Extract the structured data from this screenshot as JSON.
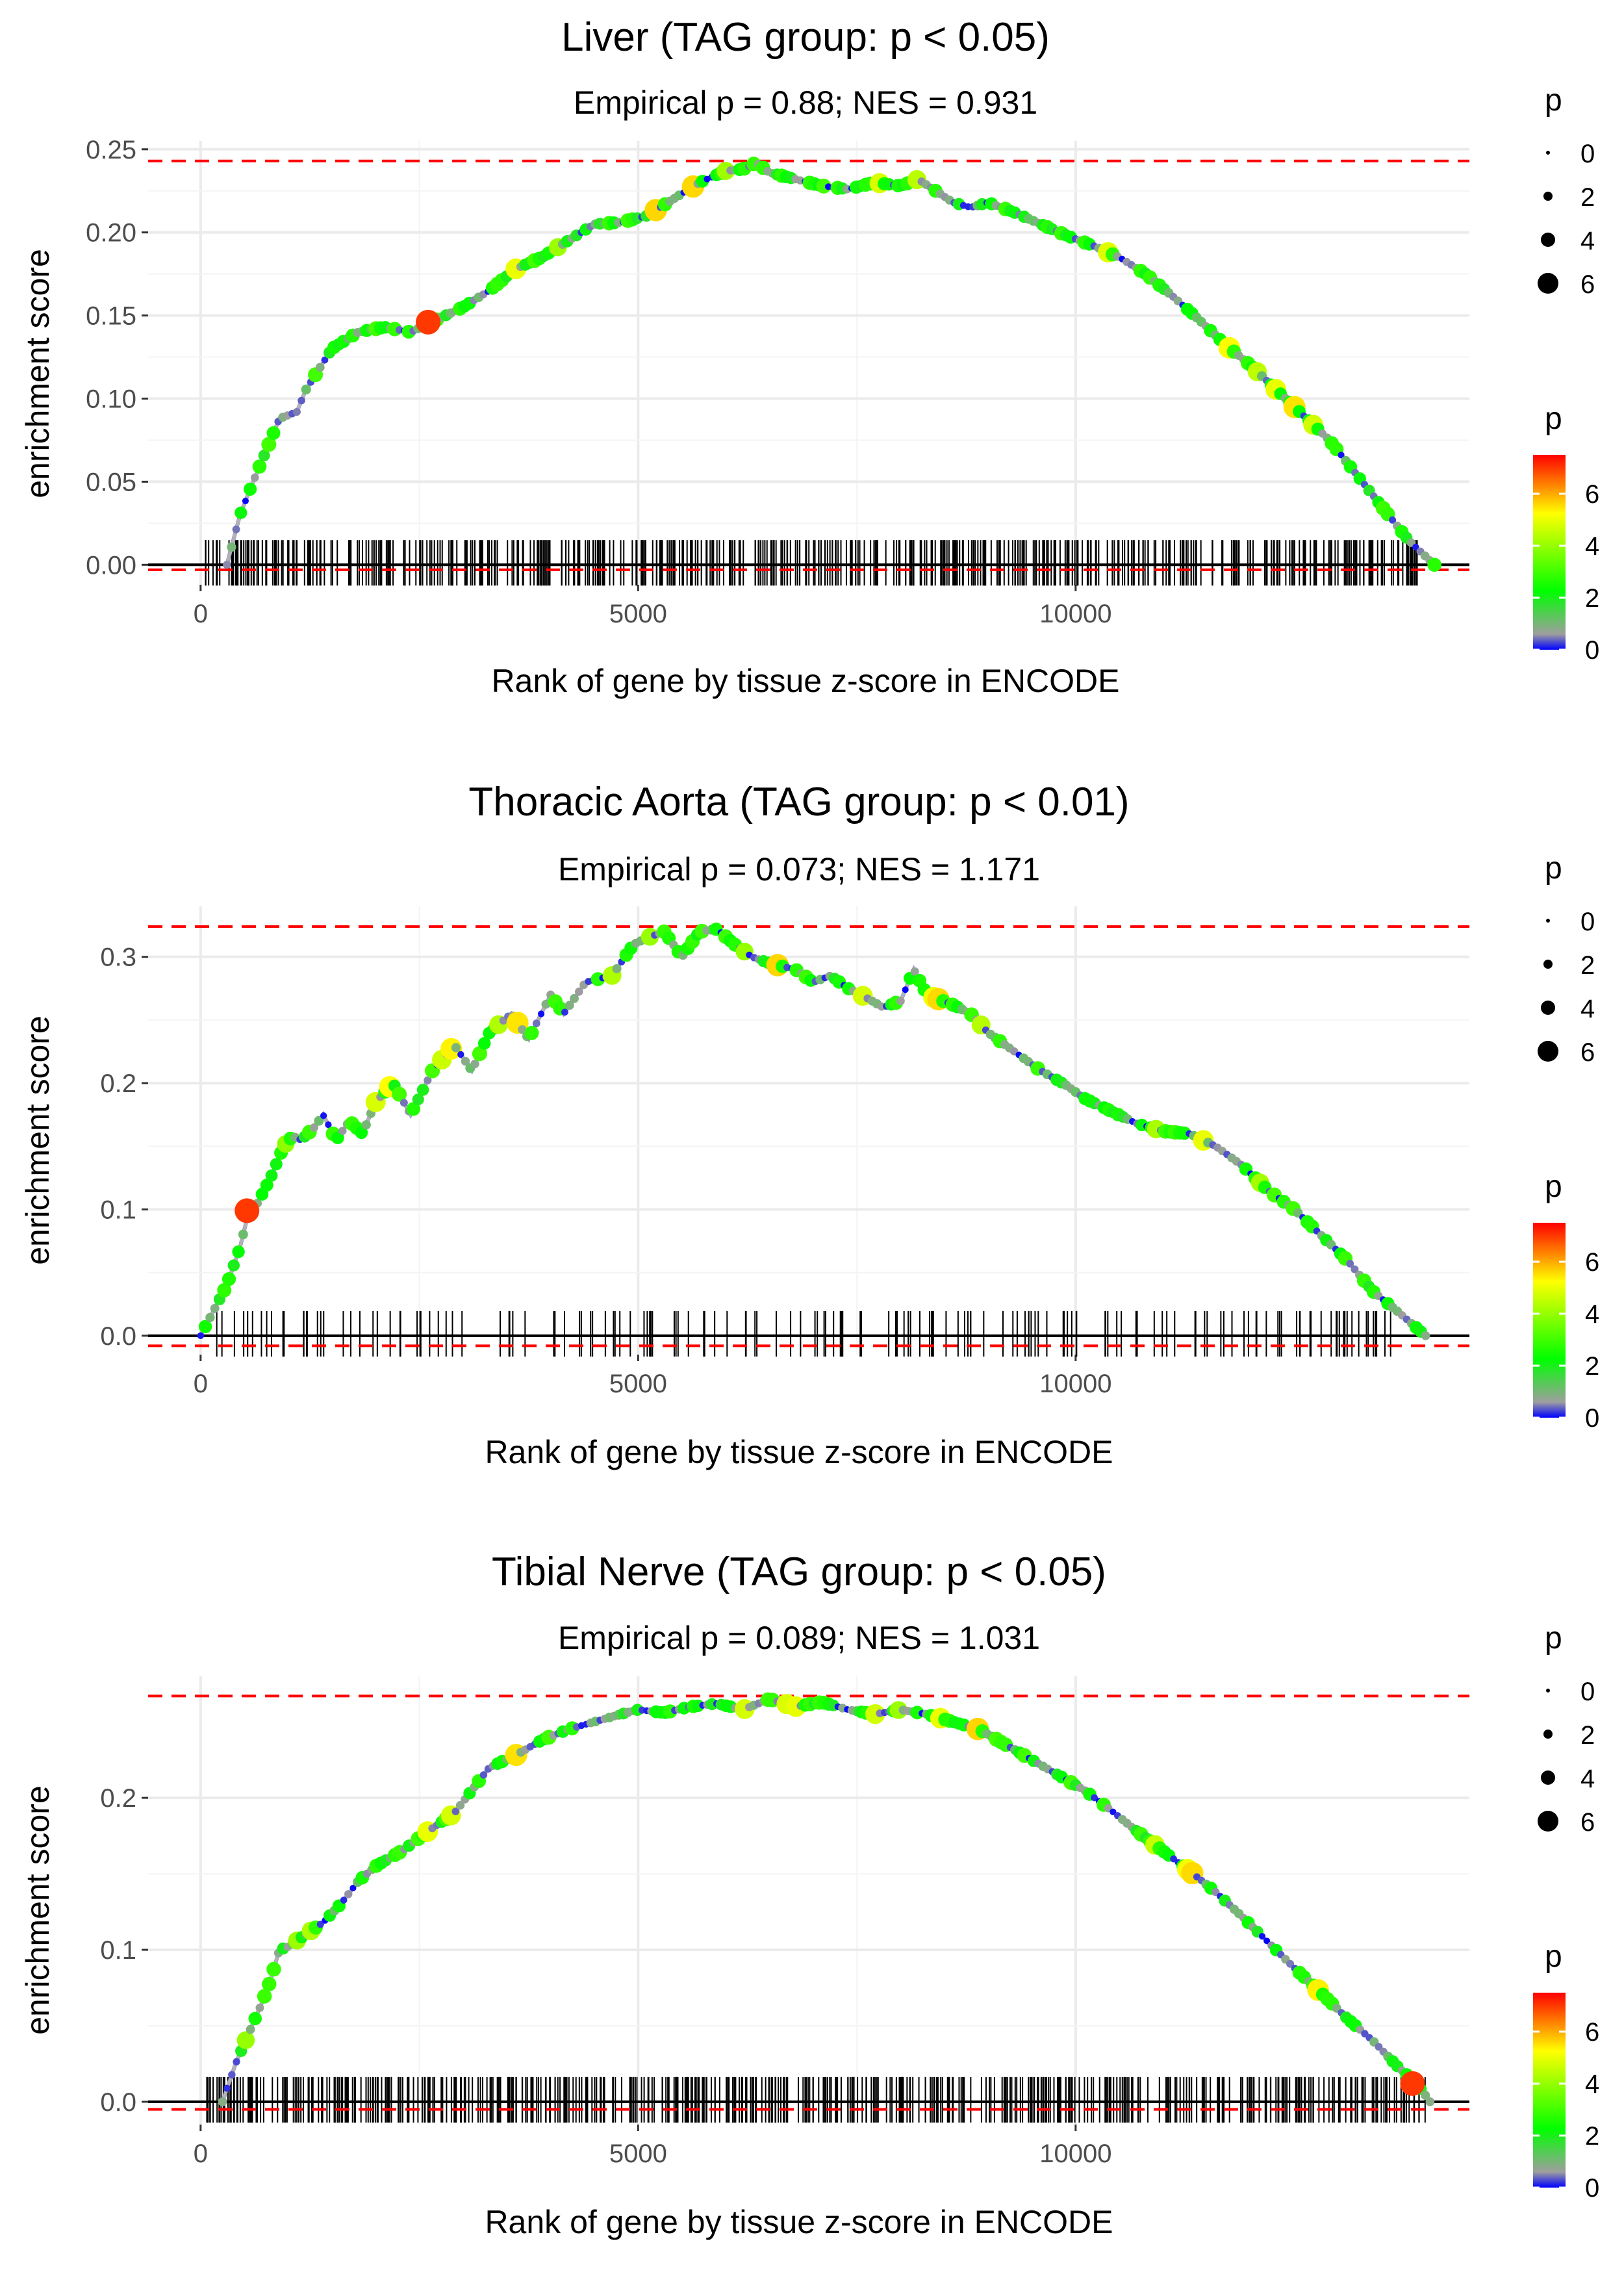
{
  "figure": {
    "description_free": true
  },
  "colors": {
    "reference_line": "#ff0000",
    "zero_line": "#000000",
    "grid": "#ebebeb",
    "curve_line": "#b3b3b3",
    "tick_mark": "#000000",
    "gradient": [
      "#0000ff",
      "#9e9e9e",
      "#00ff00",
      "#ffff00",
      "#ff0000"
    ]
  },
  "chart_data": [
    {
      "type": "line",
      "title": "Liver (TAG group: p < 0.05)",
      "subtitle": "Empirical p = 0.88; NES = 0.931",
      "xlabel": "Rank of gene by tissue z-score in ENCODE",
      "ylabel": "enrichment score",
      "xlim": [
        -600,
        14500
      ],
      "ylim": [
        -0.012,
        0.255
      ],
      "xticks": [
        0,
        5000,
        10000
      ],
      "xtick_labels": [
        "0",
        "5000",
        "10000"
      ],
      "yticks": [
        0.0,
        0.05,
        0.1,
        0.15,
        0.2,
        0.25
      ],
      "ytick_labels": [
        "0.00",
        "0.05",
        "0.10",
        "0.15",
        "0.20",
        "0.25"
      ],
      "hlines": {
        "max": 0.243,
        "min": -0.003
      },
      "series": [
        {
          "name": "running enrichment score",
          "x": [
            300,
            450,
            600,
            800,
            900,
            1000,
            1100,
            1200,
            1500,
            1800,
            2100,
            2400,
            2600,
            2800,
            3000,
            3300,
            3600,
            3900,
            4200,
            4500,
            4800,
            5100,
            5400,
            5700,
            6000,
            6200,
            6350,
            6500,
            6800,
            7100,
            7400,
            7700,
            8000,
            8200,
            8400,
            8600,
            8800,
            9000,
            9300,
            9600,
            9900,
            10200,
            10500,
            10800,
            11100,
            11400,
            11700,
            12000,
            12300,
            12600,
            12900,
            13200,
            13500,
            13800,
            14100
          ],
          "y": [
            0.0,
            0.03,
            0.05,
            0.075,
            0.088,
            0.09,
            0.092,
            0.105,
            0.13,
            0.14,
            0.143,
            0.14,
            0.145,
            0.15,
            0.155,
            0.165,
            0.178,
            0.185,
            0.195,
            0.205,
            0.206,
            0.21,
            0.22,
            0.23,
            0.237,
            0.238,
            0.242,
            0.236,
            0.232,
            0.228,
            0.226,
            0.23,
            0.228,
            0.232,
            0.225,
            0.218,
            0.215,
            0.218,
            0.212,
            0.205,
            0.198,
            0.192,
            0.185,
            0.175,
            0.162,
            0.148,
            0.133,
            0.12,
            0.105,
            0.09,
            0.075,
            0.055,
            0.035,
            0.015,
            0.0
          ]
        }
      ],
      "highlight_point": {
        "x": 2600,
        "y": 0.146,
        "p": 7
      },
      "gene_positions": {
        "count": 520,
        "start": 50,
        "end": 13950,
        "seed": 11
      },
      "legend_size": {
        "title": "p",
        "labels": [
          "0",
          "2",
          "4",
          "6"
        ]
      },
      "legend_color": {
        "title": "p",
        "labels": [
          "6",
          "4",
          "2",
          "0"
        ],
        "values": [
          6,
          4,
          2,
          0
        ],
        "range": [
          0,
          7.5
        ]
      }
    },
    {
      "type": "line",
      "title": "Thoracic Aorta (TAG group: p < 0.01)",
      "subtitle": "Empirical p = 0.073; NES = 1.171",
      "xlabel": "Rank of gene by tissue z-score in ENCODE",
      "ylabel": "enrichment score",
      "xlim": [
        -600,
        14500
      ],
      "ylim": [
        -0.015,
        0.34
      ],
      "xticks": [
        0,
        5000,
        10000
      ],
      "xtick_labels": [
        "0",
        "5000",
        "10000"
      ],
      "yticks": [
        0.0,
        0.1,
        0.2,
        0.3
      ],
      "ytick_labels": [
        "0.0",
        "0.1",
        "0.2",
        "0.3"
      ],
      "hlines": {
        "max": 0.324,
        "min": -0.008
      },
      "series": [
        {
          "name": "running enrichment score",
          "x": [
            0,
            150,
            300,
            450,
            550,
            650,
            800,
            950,
            1050,
            1150,
            1300,
            1400,
            1550,
            1700,
            1850,
            2000,
            2200,
            2400,
            2650,
            2900,
            3100,
            3300,
            3550,
            3750,
            4000,
            4150,
            4400,
            4700,
            4950,
            5100,
            5300,
            5500,
            5700,
            5900,
            6100,
            6300,
            6500,
            6800,
            7000,
            7200,
            7400,
            7600,
            7800,
            8000,
            8150,
            8300,
            8600,
            8800,
            9000,
            9300,
            9600,
            9900,
            10100,
            10400,
            10700,
            11000,
            11300,
            11600,
            11900,
            12200,
            12500,
            12800,
            13100,
            13400,
            13700,
            14000
          ],
          "y": [
            0.0,
            0.02,
            0.04,
            0.07,
            0.098,
            0.105,
            0.125,
            0.15,
            0.158,
            0.155,
            0.165,
            0.175,
            0.155,
            0.17,
            0.16,
            0.185,
            0.2,
            0.175,
            0.21,
            0.23,
            0.21,
            0.24,
            0.255,
            0.235,
            0.27,
            0.255,
            0.28,
            0.285,
            0.31,
            0.315,
            0.32,
            0.3,
            0.32,
            0.322,
            0.31,
            0.3,
            0.295,
            0.29,
            0.28,
            0.285,
            0.275,
            0.268,
            0.26,
            0.265,
            0.29,
            0.27,
            0.262,
            0.255,
            0.24,
            0.225,
            0.21,
            0.198,
            0.188,
            0.178,
            0.168,
            0.162,
            0.16,
            0.15,
            0.135,
            0.115,
            0.1,
            0.08,
            0.06,
            0.035,
            0.018,
            0.0
          ]
        }
      ],
      "highlight_point": {
        "x": 530,
        "y": 0.099,
        "p": 7
      },
      "gene_positions": {
        "count": 170,
        "start": 100,
        "end": 13950,
        "seed": 29
      },
      "legend_size": {
        "title": "p",
        "labels": [
          "0",
          "2",
          "4",
          "6"
        ]
      },
      "legend_color": {
        "title": "p",
        "labels": [
          "6",
          "4",
          "2",
          "0"
        ],
        "values": [
          6,
          4,
          2,
          0
        ],
        "range": [
          0,
          7.5
        ]
      }
    },
    {
      "type": "line",
      "title": "Tibial Nerve (TAG group: p < 0.05)",
      "subtitle": "Empirical p = 0.089; NES = 1.031",
      "xlabel": "Rank of gene by tissue z-score in ENCODE",
      "ylabel": "enrichment score",
      "xlim": [
        -600,
        14500
      ],
      "ylim": [
        -0.015,
        0.28
      ],
      "xticks": [
        0,
        5000,
        10000
      ],
      "xtick_labels": [
        "0",
        "5000",
        "10000"
      ],
      "yticks": [
        0.0,
        0.1,
        0.2
      ],
      "ytick_labels": [
        "0.0",
        "0.1",
        "0.2"
      ],
      "hlines": {
        "max": 0.267,
        "min": -0.005
      },
      "series": [
        {
          "name": "running enrichment score",
          "x": [
            250,
            400,
            550,
            700,
            800,
            900,
            1000,
            1200,
            1400,
            1600,
            1800,
            2000,
            2300,
            2600,
            2900,
            3100,
            3300,
            3600,
            3900,
            4200,
            4500,
            4800,
            5000,
            5300,
            5600,
            5900,
            6200,
            6500,
            6800,
            7100,
            7400,
            7700,
            8000,
            8300,
            8600,
            8900,
            9200,
            9500,
            9800,
            10100,
            10400,
            10700,
            11000,
            11300,
            11600,
            11900,
            12200,
            12500,
            12800,
            13100,
            13400,
            13700,
            13900,
            14050
          ],
          "y": [
            0.0,
            0.025,
            0.045,
            0.065,
            0.08,
            0.1,
            0.102,
            0.11,
            0.118,
            0.13,
            0.145,
            0.155,
            0.165,
            0.178,
            0.19,
            0.205,
            0.22,
            0.228,
            0.238,
            0.245,
            0.25,
            0.255,
            0.258,
            0.256,
            0.26,
            0.262,
            0.258,
            0.265,
            0.26,
            0.263,
            0.258,
            0.255,
            0.258,
            0.255,
            0.25,
            0.245,
            0.235,
            0.225,
            0.215,
            0.205,
            0.192,
            0.178,
            0.165,
            0.152,
            0.138,
            0.122,
            0.105,
            0.088,
            0.072,
            0.055,
            0.04,
            0.022,
            0.012,
            0.0
          ]
        }
      ],
      "highlight_point": {
        "x": 13850,
        "y": 0.012,
        "p": 7
      },
      "gene_positions": {
        "count": 540,
        "start": 60,
        "end": 14000,
        "seed": 47
      },
      "legend_size": {
        "title": "p",
        "labels": [
          "0",
          "2",
          "4",
          "6"
        ]
      },
      "legend_color": {
        "title": "p",
        "labels": [
          "6",
          "4",
          "2",
          "0"
        ],
        "values": [
          6,
          4,
          2,
          0
        ],
        "range": [
          0,
          7.5
        ]
      }
    }
  ]
}
